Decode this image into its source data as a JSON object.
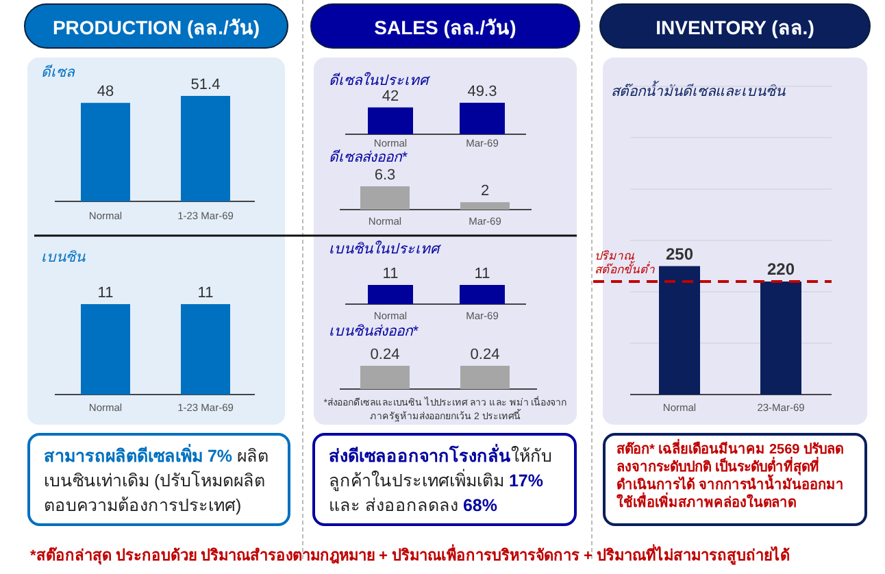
{
  "chart_data": [
    {
      "type": "bar",
      "title": "PRODUCTION (ลล./วัน)",
      "subtitle": "ดีเซล",
      "categories": [
        "Normal",
        "1-23 Mar-69"
      ],
      "values": [
        48,
        51.4
      ],
      "color": "#0070c0",
      "data_labels": true
    },
    {
      "type": "bar",
      "subtitle": "เบนซิน",
      "categories": [
        "Normal",
        "1-23 Mar-69"
      ],
      "values": [
        11,
        11
      ],
      "color": "#0070c0",
      "data_labels": true,
      "annotations": [
        "**สามารถผลิตดีเซลเพิ่ม 7%** ผลิตเบนซินเท่าเดิม (ปรับโหมดผลิตตอบความต้องการประเทศ)"
      ]
    },
    {
      "type": "bar",
      "title": "SALES (ลล./วัน)",
      "subtitle": "ดีเซลในประเทศ",
      "categories": [
        "Normal",
        "Mar-69"
      ],
      "values": [
        42,
        49.3
      ],
      "color": "#00009a",
      "data_labels": true
    },
    {
      "type": "bar",
      "subtitle": "ดีเซลส่งออก*",
      "categories": [
        "Normal",
        "Mar-69"
      ],
      "values": [
        6.3,
        2
      ],
      "color": "#a6a6a6",
      "data_labels": true
    },
    {
      "type": "bar",
      "subtitle": "เบนซินในประเทศ",
      "categories": [
        "Normal",
        "Mar-69"
      ],
      "values": [
        11,
        11
      ],
      "color": "#00009a",
      "data_labels": true
    },
    {
      "type": "bar",
      "subtitle": "เบนซินส่งออก*",
      "categories": [
        null,
        null
      ],
      "values": [
        0.24,
        0.24
      ],
      "color": "#a6a6a6",
      "data_labels": true,
      "annotations": [
        "*ส่งออกดีเซลและเบนซิน ไปประเทศ ลาว และ พม่า เนื่องจากภาครัฐห้ามส่งออกยกเว้น 2 ประเทศนี้",
        "**ส่งดีเซลออกจากโรงกลั่น**ให้กับลูกค้าในประเทศเพิ่มเติม **17%** และ ส่งออกลดลง **68%**"
      ]
    },
    {
      "type": "bar",
      "title": "INVENTORY (ลล.)",
      "subtitle": "สต๊อกน้ำมันดีเซลและเบนซิน",
      "categories": [
        "Normal",
        "23-Mar-69"
      ],
      "values": [
        250,
        220
      ],
      "color": "#0a1f5c",
      "data_labels": true,
      "ylim": [
        0,
        600
      ],
      "yticks": [
        {
          "value": 100,
          "label": null
        },
        {
          "value": 200,
          "label": null
        },
        {
          "value": 300,
          "label": null
        },
        {
          "value": 400,
          "label": null
        },
        {
          "value": 500,
          "label": null
        },
        {
          "value": 600,
          "label": null
        }
      ],
      "grid": "y",
      "ref_lines": [
        {
          "axis": "y",
          "value": 220,
          "label": "ปริมาณ สต๊อกขั้นต่ำ",
          "color": "#c00000",
          "line_style": "dashed"
        }
      ],
      "annotations": [
        "สต๊อก* เฉลี่ยเดือนมีนาคม 2569 ปรับลดลงจากระดับปกติ เป็นระดับต่ำที่สุดที่ดำเนินการได้ จากการนำน้ำมันออกมาใช้เพื่อเพิ่มสภาพคล่องในตลาด",
        "*สต๊อกล่าสุด ประกอบด้วย ปริมาณสำรองตามกฎหมาย + ปริมาณเพื่อการบริหารจัดการ + ปริมาณที่ไม่สามารถสูบถ่ายได้"
      ]
    }
  ]
}
